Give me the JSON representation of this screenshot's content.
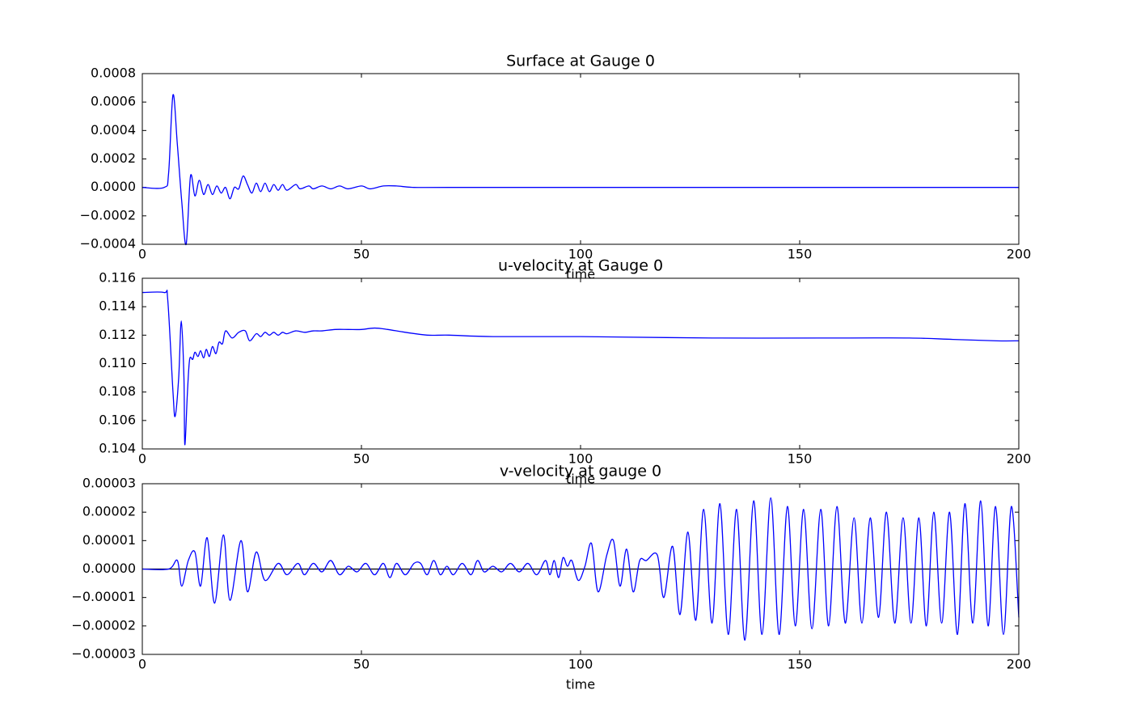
{
  "chart_data": [
    {
      "type": "line",
      "title": "Surface at Gauge 0",
      "xlabel": "time",
      "xlim": [
        0,
        200
      ],
      "xticks": [
        0,
        50,
        100,
        150,
        200
      ],
      "ylim": [
        -0.0004,
        0.0008
      ],
      "yticks": [
        {
          "value": -0.0004,
          "label": "−0.0004"
        },
        {
          "value": -0.0002,
          "label": "−0.0002"
        },
        {
          "value": 0,
          "label": "0.0000"
        },
        0.0002,
        0.0004,
        0.0006,
        0.0008
      ],
      "color": "#0000ff",
      "x": [
        0,
        5,
        6,
        7,
        8,
        9,
        10,
        11,
        12,
        13,
        14,
        15,
        16,
        17,
        18,
        19,
        20,
        21,
        22,
        23,
        24,
        25,
        26,
        27,
        28,
        29,
        30,
        31,
        32,
        33,
        35,
        36,
        38,
        39,
        41,
        43,
        45,
        47,
        50,
        52,
        55,
        58,
        62,
        70,
        100,
        150,
        200
      ],
      "values": [
        0,
        0,
        0.0001,
        0.00065,
        0.0003,
        -0.0001,
        -0.0004,
        8e-05,
        -6e-05,
        5e-05,
        -5e-05,
        2e-05,
        -5e-05,
        1e-05,
        -4e-05,
        0,
        -8e-05,
        0,
        -1e-05,
        8e-05,
        2e-05,
        -4e-05,
        3e-05,
        -3e-05,
        3e-05,
        -3e-05,
        2e-05,
        -2e-05,
        2e-05,
        -2e-05,
        2e-05,
        -1e-05,
        1e-05,
        -1e-05,
        1e-05,
        -1e-05,
        1e-05,
        -1e-05,
        1e-05,
        -1e-05,
        1e-05,
        1e-05,
        0,
        0,
        0,
        0,
        0
      ]
    },
    {
      "type": "line",
      "title": "u-velocity at Gauge 0",
      "xlabel": "time",
      "xlim": [
        0,
        200
      ],
      "xticks": [
        0,
        50,
        100,
        150,
        200
      ],
      "ylim": [
        0.104,
        0.116
      ],
      "yticks": [
        0.104,
        0.106,
        0.108,
        {
          "value": 0.11,
          "label": "0.110"
        },
        0.112,
        0.114,
        0.116
      ],
      "color": "#0000ff",
      "x": [
        0,
        5,
        5.8,
        7,
        7.5,
        8.3,
        8.9,
        9.5,
        9.7,
        10.3,
        10.8,
        11.5,
        12,
        12.7,
        13.3,
        14,
        14.6,
        15.3,
        16,
        16.8,
        17.5,
        18.3,
        19,
        20.5,
        22,
        23.5,
        24.5,
        26,
        27,
        28,
        29,
        30,
        31,
        32,
        33,
        35,
        37,
        39,
        41,
        44,
        47,
        50,
        53,
        56,
        60,
        65,
        70,
        80,
        100,
        130,
        160,
        175,
        185,
        195,
        200
      ],
      "values": [
        0.115,
        0.115,
        0.1145,
        0.108,
        0.1063,
        0.109,
        0.113,
        0.109,
        0.1043,
        0.108,
        0.1103,
        0.1103,
        0.1108,
        0.1105,
        0.1109,
        0.1104,
        0.111,
        0.1105,
        0.1112,
        0.1107,
        0.1115,
        0.1114,
        0.1123,
        0.1118,
        0.1122,
        0.1123,
        0.1116,
        0.1121,
        0.1119,
        0.1122,
        0.112,
        0.1122,
        0.112,
        0.1122,
        0.1121,
        0.1123,
        0.1122,
        0.1123,
        0.1123,
        0.1124,
        0.1124,
        0.1124,
        0.1125,
        0.1124,
        0.1122,
        0.112,
        0.112,
        0.1119,
        0.1119,
        0.1118,
        0.1118,
        0.1118,
        0.1117,
        0.1116,
        0.1116
      ]
    },
    {
      "type": "line",
      "title": "v-velocity at gauge 0",
      "xlabel": "time",
      "xlim": [
        0,
        200
      ],
      "xticks": [
        0,
        50,
        100,
        150,
        200
      ],
      "ylim": [
        -3e-05,
        3e-05
      ],
      "yticks": [
        {
          "value": -3e-05,
          "label": "−0.00003"
        },
        {
          "value": -2e-05,
          "label": "−0.00002"
        },
        {
          "value": -1e-05,
          "label": "−0.00001"
        },
        {
          "value": 0,
          "label": "0.00000"
        },
        1e-05,
        2e-05,
        3e-05
      ],
      "color": "#0000ff",
      "axhline": {
        "y": 0,
        "color": "#000000"
      },
      "x": [
        0,
        6,
        8,
        9,
        10.5,
        12,
        13.3,
        14.8,
        16.5,
        18.5,
        20,
        22.5,
        24,
        26,
        28,
        31,
        33,
        35.5,
        37,
        39,
        41,
        43,
        45,
        47,
        49,
        51,
        53,
        55,
        56.5,
        58,
        60,
        62,
        63.5,
        65,
        66.5,
        68,
        69.5,
        71,
        73,
        75,
        76.5,
        78,
        80,
        82,
        84,
        86,
        88,
        90,
        92,
        93,
        94,
        95,
        96,
        97,
        98,
        99.5,
        101,
        102.5,
        104,
        106,
        107.5,
        109,
        110.5,
        112,
        113.5,
        115,
        117.5,
        119,
        121,
        122.7,
        124.5,
        126.3,
        128.1,
        130,
        131.8,
        133.7,
        135.6,
        137.5,
        139.5,
        141.4,
        143.4,
        145.3,
        147.2,
        149,
        150.9,
        152.8,
        154.8,
        156.6,
        158.5,
        160.4,
        162.4,
        164.2,
        166.1,
        168,
        169.8,
        171.7,
        173.6,
        175.4,
        177.2,
        178.9,
        180.6,
        182.4,
        184.2,
        186,
        187.7,
        189.5,
        191.3,
        193,
        194.7,
        196.5,
        198.3,
        200
      ],
      "values": [
        0,
        0,
        3e-06,
        -6e-06,
        3e-06,
        6e-06,
        -6e-06,
        1.1e-05,
        -1.2e-05,
        1.2e-05,
        -1.1e-05,
        1e-05,
        -8e-06,
        6e-06,
        -4e-06,
        2e-06,
        -2e-06,
        2e-06,
        -2e-06,
        2e-06,
        -1e-06,
        3e-06,
        -2e-06,
        1e-06,
        -1e-06,
        2e-06,
        -2e-06,
        2e-06,
        -3e-06,
        2e-06,
        -2e-06,
        2e-06,
        2e-06,
        -2e-06,
        3e-06,
        -2e-06,
        1e-06,
        -2e-06,
        2e-06,
        -2e-06,
        3e-06,
        -1e-06,
        1e-06,
        -1e-06,
        2e-06,
        -1e-06,
        2e-06,
        -2e-06,
        3e-06,
        -2e-06,
        3e-06,
        -3e-06,
        4e-06,
        1e-06,
        3e-06,
        -4e-06,
        1e-06,
        9e-06,
        -8e-06,
        5e-06,
        1e-05,
        -6e-06,
        7e-06,
        -8e-06,
        3e-06,
        3e-06,
        5e-06,
        -1e-05,
        8e-06,
        -1.6e-05,
        1.3e-05,
        -1.8e-05,
        2.1e-05,
        -1.9e-05,
        2.3e-05,
        -2.3e-05,
        2.1e-05,
        -2.5e-05,
        2.4e-05,
        -2.3e-05,
        2.5e-05,
        -2.3e-05,
        2.2e-05,
        -2e-05,
        2.1e-05,
        -2.1e-05,
        2.1e-05,
        -2e-05,
        2.2e-05,
        -1.9e-05,
        1.8e-05,
        -1.9e-05,
        1.8e-05,
        -1.7e-05,
        2e-05,
        -1.9e-05,
        1.8e-05,
        -1.9e-05,
        1.8e-05,
        -2e-05,
        2e-05,
        -1.9e-05,
        2e-05,
        -2.3e-05,
        2.3e-05,
        -1.9e-05,
        2.4e-05,
        -2e-05,
        2.2e-05,
        -2.3e-05,
        2.2e-05,
        -1.7e-05
      ]
    }
  ]
}
